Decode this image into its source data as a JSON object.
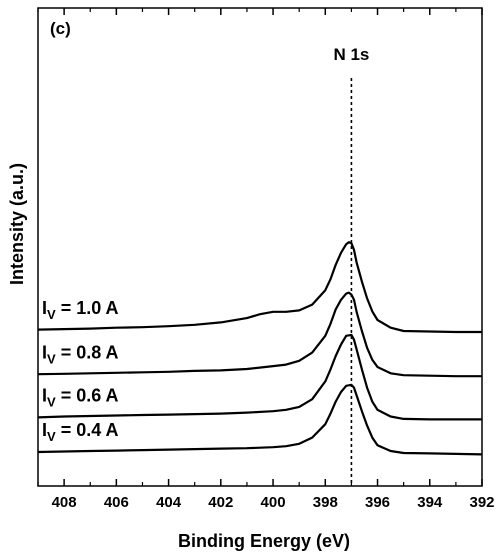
{
  "chart_data": {
    "type": "line",
    "panel_label": "(c)",
    "xlabel": "Binding Energy (eV)",
    "ylabel": "Intensity (a.u.)",
    "xlim": [
      409,
      392
    ],
    "x_reversed": true,
    "x_ticks": [
      408,
      406,
      404,
      402,
      400,
      398,
      396,
      394,
      392
    ],
    "y_ticks": [],
    "grid": false,
    "legend": "none",
    "line_color": "#000000",
    "annotations": [
      {
        "text": "N 1s",
        "type": "vertical-dashed-reference",
        "x": 397.0
      }
    ],
    "series": [
      {
        "label_main": "I",
        "label_sub": "V",
        "label_tail": " = 1.0 A",
        "offset": 2.55,
        "x": [
          409,
          408,
          407,
          406,
          405,
          404,
          403,
          402,
          401,
          400.5,
          400,
          399.5,
          399,
          398.5,
          398,
          397.8,
          397.6,
          397.4,
          397.2,
          397.1,
          397.0,
          396.9,
          396.8,
          396.6,
          396.4,
          396.2,
          396,
          395.5,
          395,
          394,
          393,
          392
        ],
        "y": [
          0.0,
          0.01,
          0.02,
          0.04,
          0.05,
          0.07,
          0.1,
          0.15,
          0.24,
          0.32,
          0.37,
          0.37,
          0.4,
          0.52,
          0.82,
          1.05,
          1.35,
          1.6,
          1.78,
          1.82,
          1.8,
          1.66,
          1.4,
          1.0,
          0.65,
          0.38,
          0.2,
          0.04,
          -0.03,
          -0.04,
          -0.05,
          -0.05
        ]
      },
      {
        "label_main": "I",
        "label_sub": "V",
        "label_tail": " = 0.8 A",
        "offset": 1.62,
        "x": [
          409,
          408,
          407,
          406,
          405,
          404,
          403,
          402,
          401,
          400,
          399.5,
          399,
          398.5,
          398,
          397.8,
          397.6,
          397.4,
          397.2,
          397.1,
          397.0,
          396.9,
          396.8,
          396.6,
          396.4,
          396.2,
          396,
          395.5,
          395,
          394,
          393,
          392
        ],
        "y": [
          0.0,
          0.01,
          0.02,
          0.03,
          0.04,
          0.05,
          0.07,
          0.08,
          0.11,
          0.17,
          0.2,
          0.28,
          0.45,
          0.8,
          1.05,
          1.35,
          1.55,
          1.68,
          1.7,
          1.66,
          1.55,
          1.3,
          0.9,
          0.55,
          0.3,
          0.15,
          0.02,
          -0.02,
          -0.03,
          -0.04,
          -0.04
        ]
      },
      {
        "label_main": "I",
        "label_sub": "V",
        "label_tail": " = 0.6 A",
        "offset": 0.72,
        "x": [
          409,
          408,
          407,
          406,
          405,
          404,
          403,
          402,
          401,
          400,
          399.5,
          399,
          398.5,
          398,
          397.8,
          397.6,
          397.4,
          397.2,
          397.0,
          396.9,
          396.8,
          396.6,
          396.4,
          396.2,
          396,
          395.5,
          395,
          394,
          393,
          392
        ],
        "y": [
          0.0,
          0.02,
          0.03,
          0.04,
          0.05,
          0.06,
          0.07,
          0.08,
          0.1,
          0.13,
          0.16,
          0.22,
          0.38,
          0.75,
          1.0,
          1.28,
          1.52,
          1.7,
          1.72,
          1.62,
          1.42,
          1.0,
          0.62,
          0.33,
          0.16,
          0.02,
          -0.03,
          -0.04,
          -0.04,
          -0.04
        ]
      },
      {
        "label_main": "I",
        "label_sub": "V",
        "label_tail": " = 0.4 A",
        "offset": 0.0,
        "x": [
          409,
          408,
          407,
          406,
          405,
          404,
          403,
          402,
          401,
          400,
          399.5,
          399,
          398.5,
          398,
          397.8,
          397.6,
          397.4,
          397.2,
          397.0,
          396.9,
          396.8,
          396.6,
          396.4,
          396.2,
          396,
          395.5,
          395,
          394,
          393,
          392
        ],
        "y": [
          0.0,
          0.01,
          0.02,
          0.03,
          0.04,
          0.05,
          0.06,
          0.07,
          0.08,
          0.1,
          0.12,
          0.17,
          0.3,
          0.58,
          0.8,
          1.05,
          1.25,
          1.38,
          1.4,
          1.34,
          1.18,
          0.85,
          0.55,
          0.3,
          0.14,
          0.02,
          -0.02,
          -0.03,
          -0.04,
          -0.05
        ]
      }
    ]
  }
}
